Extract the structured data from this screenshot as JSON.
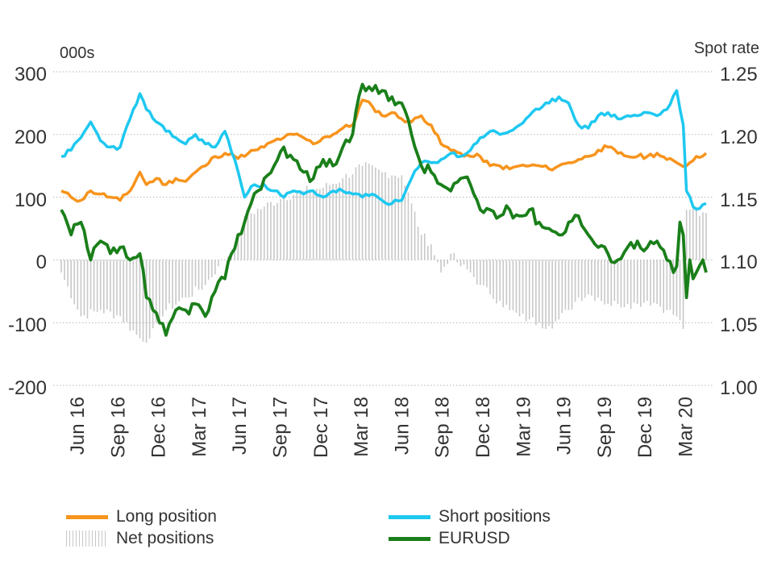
{
  "chart_data": {
    "type": "line",
    "left_axis": {
      "unit_label": "000s",
      "ticks": [
        300,
        200,
        100,
        0,
        -100,
        -200
      ],
      "ylim": [
        -200,
        300
      ]
    },
    "right_axis": {
      "unit_label": "Spot rate",
      "ticks": [
        "1.25",
        "1.20",
        "1.15",
        "1.10",
        "1.05",
        "1.00"
      ],
      "ylim": [
        1.0,
        1.25
      ]
    },
    "x_ticks": [
      "Jun 16",
      "Sep 16",
      "Dec 16",
      "Mar 17",
      "Jun 17",
      "Sep 17",
      "Dec 17",
      "Mar 18",
      "Jun 18",
      "Sep 18",
      "Dec 18",
      "Mar 19",
      "Jun 19",
      "Sep 19",
      "Dec 19",
      "Mar 20"
    ],
    "x_start": "2016-05",
    "period": "weekly",
    "grid": "horizontal dotted",
    "legend_position": "bottom",
    "series": [
      {
        "name": "Long position",
        "axis": "left",
        "color": "#f7941d",
        "anchors": [
          [
            0,
            110
          ],
          [
            3,
            100
          ],
          [
            6,
            95
          ],
          [
            9,
            110
          ],
          [
            12,
            105
          ],
          [
            15,
            100
          ],
          [
            18,
            95
          ],
          [
            21,
            110
          ],
          [
            24,
            140
          ],
          [
            26,
            120
          ],
          [
            29,
            130
          ],
          [
            32,
            120
          ],
          [
            35,
            130
          ],
          [
            38,
            125
          ],
          [
            41,
            140
          ],
          [
            44,
            150
          ],
          [
            47,
            165
          ],
          [
            50,
            170
          ],
          [
            53,
            165
          ],
          [
            56,
            165
          ],
          [
            59,
            175
          ],
          [
            62,
            180
          ],
          [
            65,
            190
          ],
          [
            68,
            195
          ],
          [
            71,
            200
          ],
          [
            74,
            195
          ],
          [
            77,
            185
          ],
          [
            80,
            195
          ],
          [
            83,
            200
          ],
          [
            86,
            210
          ],
          [
            89,
            215
          ],
          [
            92,
            255
          ],
          [
            95,
            245
          ],
          [
            98,
            230
          ],
          [
            101,
            235
          ],
          [
            104,
            225
          ],
          [
            107,
            220
          ],
          [
            110,
            230
          ],
          [
            113,
            215
          ],
          [
            116,
            185
          ],
          [
            119,
            175
          ],
          [
            122,
            170
          ],
          [
            125,
            165
          ],
          [
            128,
            165
          ],
          [
            131,
            150
          ],
          [
            134,
            150
          ],
          [
            137,
            145
          ],
          [
            140,
            150
          ],
          [
            143,
            150
          ],
          [
            146,
            150
          ],
          [
            149,
            145
          ],
          [
            152,
            150
          ],
          [
            155,
            155
          ],
          [
            158,
            160
          ],
          [
            161,
            165
          ],
          [
            164,
            175
          ],
          [
            167,
            180
          ],
          [
            170,
            170
          ],
          [
            173,
            165
          ],
          [
            176,
            165
          ],
          [
            179,
            165
          ],
          [
            182,
            170
          ],
          [
            185,
            160
          ],
          [
            188,
            155
          ],
          [
            191,
            150
          ],
          [
            194,
            165
          ],
          [
            197,
            170
          ]
        ]
      },
      {
        "name": "Short positions",
        "axis": "left",
        "color": "#1ec8f0",
        "anchors": [
          [
            0,
            165
          ],
          [
            3,
            175
          ],
          [
            6,
            195
          ],
          [
            9,
            220
          ],
          [
            12,
            190
          ],
          [
            15,
            180
          ],
          [
            18,
            180
          ],
          [
            21,
            225
          ],
          [
            24,
            265
          ],
          [
            26,
            240
          ],
          [
            29,
            220
          ],
          [
            32,
            205
          ],
          [
            35,
            195
          ],
          [
            38,
            185
          ],
          [
            41,
            200
          ],
          [
            44,
            185
          ],
          [
            47,
            180
          ],
          [
            50,
            205
          ],
          [
            53,
            160
          ],
          [
            56,
            100
          ],
          [
            59,
            120
          ],
          [
            62,
            120
          ],
          [
            65,
            110
          ],
          [
            68,
            100
          ],
          [
            71,
            110
          ],
          [
            74,
            105
          ],
          [
            77,
            110
          ],
          [
            80,
            100
          ],
          [
            83,
            110
          ],
          [
            86,
            110
          ],
          [
            89,
            105
          ],
          [
            92,
            100
          ],
          [
            95,
            105
          ],
          [
            98,
            95
          ],
          [
            101,
            90
          ],
          [
            104,
            95
          ],
          [
            107,
            130
          ],
          [
            110,
            155
          ],
          [
            113,
            155
          ],
          [
            116,
            160
          ],
          [
            119,
            170
          ],
          [
            122,
            165
          ],
          [
            125,
            175
          ],
          [
            128,
            195
          ],
          [
            131,
            205
          ],
          [
            134,
            200
          ],
          [
            137,
            205
          ],
          [
            140,
            215
          ],
          [
            143,
            230
          ],
          [
            146,
            240
          ],
          [
            149,
            250
          ],
          [
            152,
            260
          ],
          [
            155,
            250
          ],
          [
            158,
            215
          ],
          [
            161,
            210
          ],
          [
            164,
            230
          ],
          [
            167,
            235
          ],
          [
            170,
            225
          ],
          [
            173,
            230
          ],
          [
            176,
            230
          ],
          [
            179,
            235
          ],
          [
            182,
            230
          ],
          [
            185,
            240
          ],
          [
            188,
            270
          ],
          [
            190,
            215
          ],
          [
            191,
            110
          ],
          [
            193,
            85
          ],
          [
            195,
            82
          ],
          [
            197,
            90
          ]
        ]
      },
      {
        "name": "Net positions",
        "axis": "left",
        "type": "bar",
        "color": "#c8c8c8",
        "anchors": [
          [
            0,
            -20
          ],
          [
            6,
            -90
          ],
          [
            12,
            -80
          ],
          [
            18,
            -90
          ],
          [
            24,
            -125
          ],
          [
            27,
            -125
          ],
          [
            32,
            -80
          ],
          [
            38,
            -60
          ],
          [
            44,
            -40
          ],
          [
            48,
            -10
          ],
          [
            53,
            20
          ],
          [
            56,
            70
          ],
          [
            62,
            85
          ],
          [
            68,
            100
          ],
          [
            74,
            110
          ],
          [
            80,
            115
          ],
          [
            86,
            130
          ],
          [
            92,
            150
          ],
          [
            98,
            140
          ],
          [
            104,
            135
          ],
          [
            107,
            90
          ],
          [
            110,
            40
          ],
          [
            113,
            25
          ],
          [
            116,
            -20
          ],
          [
            119,
            10
          ],
          [
            122,
            -10
          ],
          [
            125,
            -20
          ],
          [
            128,
            -40
          ],
          [
            131,
            -55
          ],
          [
            134,
            -65
          ],
          [
            137,
            -80
          ],
          [
            140,
            -90
          ],
          [
            143,
            -95
          ],
          [
            146,
            -100
          ],
          [
            149,
            -105
          ],
          [
            152,
            -95
          ],
          [
            155,
            -80
          ],
          [
            158,
            -60
          ],
          [
            161,
            -55
          ],
          [
            164,
            -60
          ],
          [
            167,
            -70
          ],
          [
            170,
            -70
          ],
          [
            173,
            -70
          ],
          [
            176,
            -70
          ],
          [
            179,
            -65
          ],
          [
            182,
            -70
          ],
          [
            185,
            -80
          ],
          [
            188,
            -90
          ],
          [
            190,
            -110
          ],
          [
            191,
            80
          ],
          [
            193,
            85
          ],
          [
            195,
            70
          ],
          [
            197,
            75
          ]
        ]
      },
      {
        "name": "EURUSD",
        "axis": "right",
        "color": "#1a7f1a",
        "anchors": [
          [
            0,
            1.14
          ],
          [
            3,
            1.12
          ],
          [
            6,
            1.13
          ],
          [
            9,
            1.1
          ],
          [
            12,
            1.115
          ],
          [
            15,
            1.105
          ],
          [
            18,
            1.11
          ],
          [
            21,
            1.1
          ],
          [
            24,
            1.105
          ],
          [
            26,
            1.07
          ],
          [
            28,
            1.06
          ],
          [
            30,
            1.05
          ],
          [
            32,
            1.04
          ],
          [
            35,
            1.06
          ],
          [
            38,
            1.06
          ],
          [
            41,
            1.065
          ],
          [
            44,
            1.055
          ],
          [
            47,
            1.075
          ],
          [
            50,
            1.085
          ],
          [
            52,
            1.105
          ],
          [
            54,
            1.12
          ],
          [
            56,
            1.13
          ],
          [
            58,
            1.145
          ],
          [
            60,
            1.155
          ],
          [
            62,
            1.165
          ],
          [
            65,
            1.175
          ],
          [
            68,
            1.19
          ],
          [
            71,
            1.18
          ],
          [
            74,
            1.17
          ],
          [
            77,
            1.165
          ],
          [
            80,
            1.18
          ],
          [
            83,
            1.175
          ],
          [
            86,
            1.19
          ],
          [
            89,
            1.2
          ],
          [
            92,
            1.24
          ],
          [
            95,
            1.235
          ],
          [
            98,
            1.235
          ],
          [
            101,
            1.23
          ],
          [
            104,
            1.225
          ],
          [
            107,
            1.2
          ],
          [
            110,
            1.175
          ],
          [
            113,
            1.17
          ],
          [
            116,
            1.16
          ],
          [
            119,
            1.155
          ],
          [
            122,
            1.165
          ],
          [
            125,
            1.16
          ],
          [
            128,
            1.14
          ],
          [
            131,
            1.14
          ],
          [
            134,
            1.135
          ],
          [
            137,
            1.14
          ],
          [
            140,
            1.135
          ],
          [
            143,
            1.14
          ],
          [
            146,
            1.13
          ],
          [
            149,
            1.125
          ],
          [
            152,
            1.12
          ],
          [
            155,
            1.13
          ],
          [
            158,
            1.135
          ],
          [
            161,
            1.12
          ],
          [
            164,
            1.11
          ],
          [
            167,
            1.105
          ],
          [
            170,
            1.1
          ],
          [
            173,
            1.11
          ],
          [
            176,
            1.115
          ],
          [
            179,
            1.11
          ],
          [
            182,
            1.115
          ],
          [
            185,
            1.1
          ],
          [
            187,
            1.09
          ],
          [
            188,
            1.095
          ],
          [
            189,
            1.13
          ],
          [
            190,
            1.12
          ],
          [
            191,
            1.07
          ],
          [
            192,
            1.1
          ],
          [
            193,
            1.085
          ],
          [
            194,
            1.09
          ],
          [
            196,
            1.1
          ],
          [
            197,
            1.09
          ]
        ]
      }
    ]
  }
}
